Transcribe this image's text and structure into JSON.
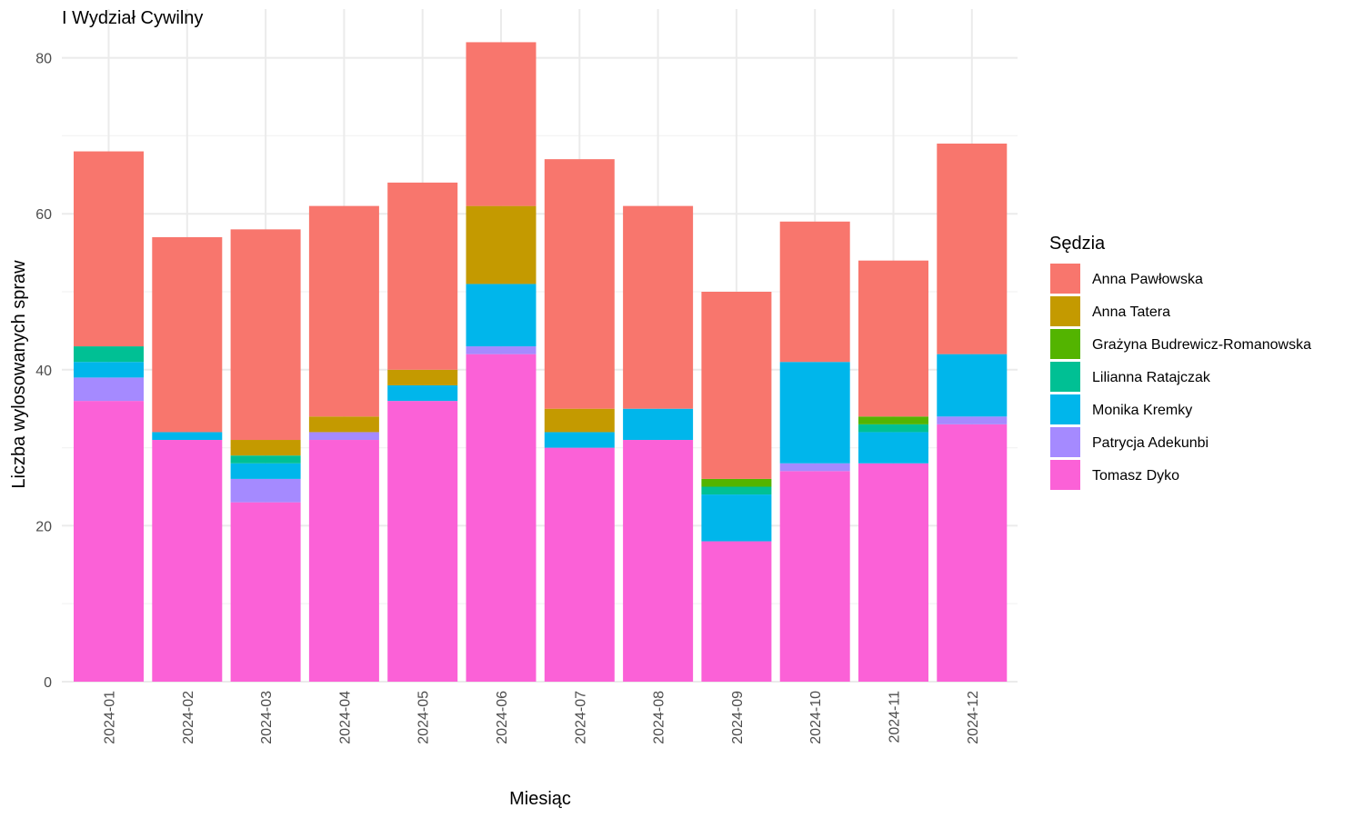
{
  "chart_data": {
    "type": "bar",
    "stacked": true,
    "title": "I Wydział Cywilny",
    "xlabel": "Miesiąc",
    "ylabel": "Liczba wylosowanych spraw",
    "ylim": [
      0,
      86
    ],
    "yticks": [
      0,
      20,
      40,
      60,
      80
    ],
    "grid": true,
    "legend_position": "right",
    "legend_title": "Sędzia",
    "categories": [
      "2024-01",
      "2024-02",
      "2024-03",
      "2024-04",
      "2024-05",
      "2024-06",
      "2024-07",
      "2024-08",
      "2024-09",
      "2024-10",
      "2024-11",
      "2024-12"
    ],
    "series": [
      {
        "name": "Anna Pawłowska",
        "color": "#F8766D",
        "values": [
          25,
          25,
          27,
          27,
          24,
          21,
          32,
          26,
          24,
          18,
          20,
          27
        ]
      },
      {
        "name": "Anna Tatera",
        "color": "#C49A00",
        "values": [
          0,
          0,
          2,
          2,
          2,
          10,
          3,
          0,
          0,
          0,
          0,
          0
        ]
      },
      {
        "name": "Grażyna Budrewicz-Romanowska",
        "color": "#53B400",
        "values": [
          0,
          0,
          0,
          0,
          0,
          0,
          0,
          0,
          1,
          0,
          1,
          0
        ]
      },
      {
        "name": "Lilianna Ratajczak",
        "color": "#00C094",
        "values": [
          2,
          0,
          1,
          0,
          0,
          0,
          0,
          0,
          1,
          0,
          1,
          0
        ]
      },
      {
        "name": "Monika Kremky",
        "color": "#00B6EB",
        "values": [
          2,
          1,
          2,
          0,
          2,
          8,
          2,
          4,
          6,
          13,
          4,
          8
        ]
      },
      {
        "name": "Patrycja Adekunbi",
        "color": "#A58AFF",
        "values": [
          3,
          0,
          3,
          1,
          0,
          1,
          0,
          0,
          0,
          1,
          0,
          1
        ]
      },
      {
        "name": "Tomasz Dyko",
        "color": "#FB61D7",
        "values": [
          36,
          31,
          23,
          31,
          36,
          42,
          30,
          31,
          18,
          27,
          28,
          33
        ]
      }
    ]
  }
}
